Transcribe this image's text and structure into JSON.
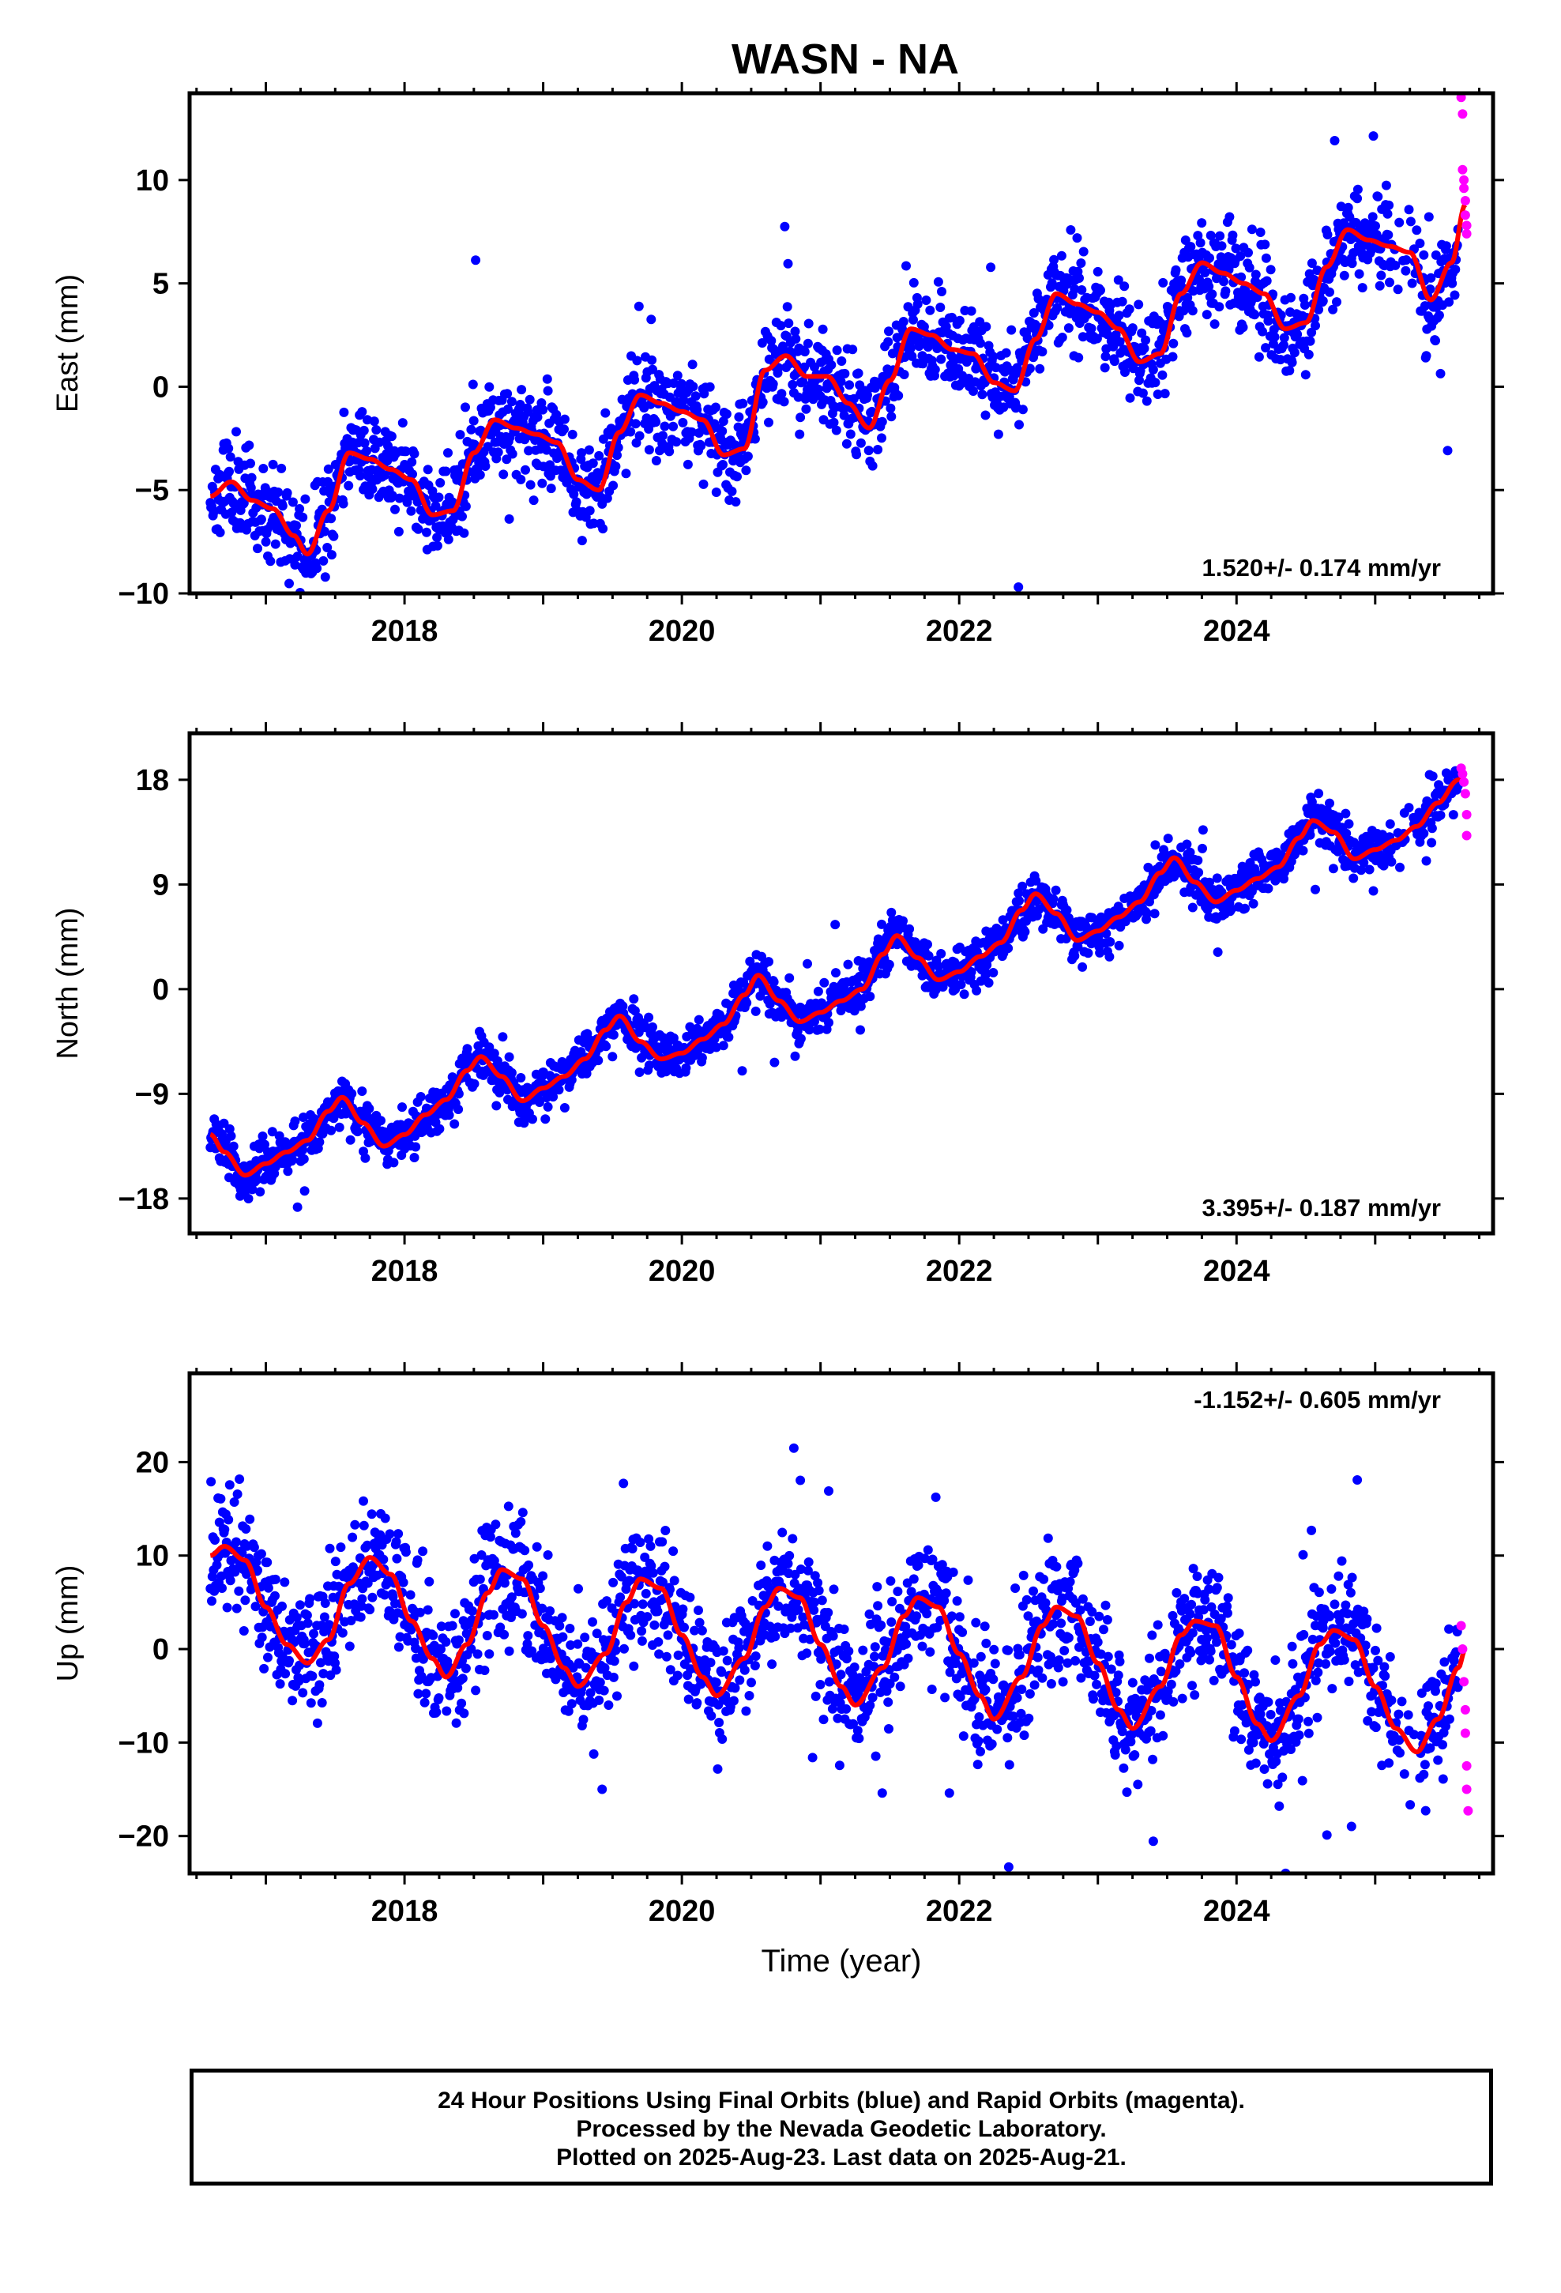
{
  "title": "WASN - NA",
  "footer": {
    "line1": "24 Hour Positions Using Final Orbits (blue) and Rapid Orbits (magenta).",
    "line2": "Processed by the Nevada Geodetic Laboratory.",
    "line3": "Plotted on 2025-Aug-23. Last data on 2025-Aug-21."
  },
  "colors": {
    "final_orbits": "#0000ff",
    "rapid_orbits": "#ff00ff",
    "model": "#ff0000"
  },
  "chart_data": [
    {
      "type": "scatter",
      "ylabel": "East (mm)",
      "xlabel": "",
      "xlim": [
        2016.45,
        2025.85
      ],
      "ylim": [
        -10,
        14.2
      ],
      "yticks": [
        -10,
        -5,
        0,
        5,
        10
      ],
      "xticks": [
        2018,
        2020,
        2022,
        2024
      ],
      "rate_label": "1.520+/- 0.174 mm/yr",
      "series": [
        {
          "kind": "model",
          "x": [
            2016.6,
            2016.75,
            2016.9,
            2017.05,
            2017.2,
            2017.3,
            2017.45,
            2017.6,
            2017.75,
            2017.9,
            2018.05,
            2018.2,
            2018.35,
            2018.5,
            2018.65,
            2018.8,
            2018.95,
            2019.1,
            2019.25,
            2019.4,
            2019.55,
            2019.7,
            2019.85,
            2020.0,
            2020.15,
            2020.3,
            2020.45,
            2020.6,
            2020.75,
            2020.9,
            2021.05,
            2021.2,
            2021.35,
            2021.5,
            2021.65,
            2021.8,
            2021.95,
            2022.1,
            2022.25,
            2022.4,
            2022.55,
            2022.7,
            2022.85,
            2023.0,
            2023.15,
            2023.3,
            2023.45,
            2023.6,
            2023.75,
            2023.9,
            2024.05,
            2024.2,
            2024.35,
            2024.5,
            2024.65,
            2024.8,
            2024.95,
            2025.1,
            2025.25,
            2025.4,
            2025.55,
            2025.65
          ],
          "y": [
            -5.3,
            -4.6,
            -5.5,
            -5.9,
            -7.2,
            -8.1,
            -6.0,
            -3.2,
            -3.5,
            -4.0,
            -4.5,
            -6.2,
            -6.0,
            -3.2,
            -1.6,
            -2.0,
            -2.3,
            -2.7,
            -4.5,
            -5.0,
            -2.2,
            -0.4,
            -0.8,
            -1.2,
            -1.6,
            -3.3,
            -3.0,
            0.8,
            1.5,
            0.5,
            0.5,
            -0.8,
            -2.0,
            0.3,
            2.8,
            2.5,
            1.8,
            1.6,
            0.2,
            -0.2,
            2.3,
            4.5,
            4.0,
            3.6,
            2.8,
            1.2,
            1.6,
            4.5,
            6.0,
            5.5,
            5.0,
            4.5,
            2.8,
            3.1,
            5.8,
            7.6,
            7.1,
            6.8,
            6.5,
            4.2,
            6.0,
            8.8
          ]
        },
        {
          "kind": "rapid",
          "x": [
            2025.62,
            2025.63,
            2025.63,
            2025.64,
            2025.64,
            2025.65,
            2025.65,
            2025.66,
            2025.66
          ],
          "y": [
            14.0,
            13.2,
            10.5,
            10.0,
            9.6,
            9.0,
            8.3,
            7.8,
            7.4
          ]
        }
      ],
      "scatter": {
        "seed": 11,
        "spread": 1.1,
        "outlier_rate": 0.02,
        "x_start": 2016.6,
        "x_end": 2025.6
      }
    },
    {
      "type": "scatter",
      "ylabel": "North (mm)",
      "xlabel": "",
      "xlim": [
        2016.45,
        2025.85
      ],
      "ylim": [
        -21,
        22
      ],
      "yticks": [
        -18,
        -9,
        0,
        9,
        18
      ],
      "xticks": [
        2018,
        2020,
        2022,
        2024
      ],
      "rate_label": "3.395+/- 0.187 mm/yr",
      "series": [
        {
          "kind": "model",
          "x": [
            2016.6,
            2016.7,
            2016.85,
            2017.0,
            2017.15,
            2017.3,
            2017.45,
            2017.55,
            2017.7,
            2017.85,
            2018.0,
            2018.15,
            2018.3,
            2018.45,
            2018.55,
            2018.7,
            2018.85,
            2019.0,
            2019.15,
            2019.3,
            2019.45,
            2019.55,
            2019.7,
            2019.85,
            2020.0,
            2020.15,
            2020.3,
            2020.45,
            2020.55,
            2020.7,
            2020.85,
            2021.0,
            2021.15,
            2021.3,
            2021.45,
            2021.55,
            2021.7,
            2021.85,
            2022.0,
            2022.15,
            2022.3,
            2022.45,
            2022.55,
            2022.7,
            2022.85,
            2023.0,
            2023.15,
            2023.3,
            2023.45,
            2023.55,
            2023.7,
            2023.85,
            2024.0,
            2024.15,
            2024.3,
            2024.45,
            2024.55,
            2024.7,
            2024.85,
            2025.0,
            2025.15,
            2025.3,
            2025.45,
            2025.6,
            2025.65
          ],
          "y": [
            -12.5,
            -14.0,
            -16.0,
            -15.0,
            -14.0,
            -13.0,
            -10.5,
            -9.3,
            -11.5,
            -13.5,
            -12.5,
            -10.8,
            -9.5,
            -7.0,
            -5.8,
            -7.5,
            -9.6,
            -8.5,
            -7.5,
            -6.0,
            -3.5,
            -2.3,
            -4.5,
            -6.0,
            -5.5,
            -4.3,
            -3.0,
            -0.5,
            1.2,
            -1.0,
            -2.8,
            -2.0,
            -1.0,
            0.0,
            3.0,
            4.6,
            2.7,
            0.8,
            1.5,
            2.8,
            4.0,
            6.8,
            8.2,
            6.5,
            4.2,
            5.0,
            6.2,
            7.5,
            10.0,
            11.3,
            9.2,
            7.5,
            8.5,
            9.5,
            10.5,
            13.0,
            14.5,
            13.5,
            11.2,
            12.0,
            12.8,
            14.0,
            16.0,
            18.0,
            18.4
          ]
        },
        {
          "kind": "rapid",
          "x": [
            2025.62,
            2025.63,
            2025.64,
            2025.65,
            2025.66,
            2025.66
          ],
          "y": [
            19.0,
            18.5,
            17.8,
            16.8,
            15.0,
            13.2
          ]
        }
      ],
      "scatter": {
        "seed": 23,
        "spread": 1.0,
        "outlier_rate": 0.015,
        "x_start": 2016.6,
        "x_end": 2025.6
      }
    },
    {
      "type": "scatter",
      "ylabel": "Up (mm)",
      "xlabel": "Time (year)",
      "xlim": [
        2016.45,
        2025.85
      ],
      "ylim": [
        -24,
        29.5
      ],
      "yticks": [
        -20,
        -10,
        0,
        10,
        20
      ],
      "xticks": [
        2018,
        2020,
        2022,
        2024
      ],
      "rate_label": "-1.152+/- 0.605 mm/yr",
      "series": [
        {
          "kind": "model",
          "x": [
            2016.6,
            2016.7,
            2016.85,
            2017.0,
            2017.15,
            2017.3,
            2017.45,
            2017.6,
            2017.75,
            2017.9,
            2018.05,
            2018.2,
            2018.3,
            2018.45,
            2018.6,
            2018.7,
            2018.85,
            2019.0,
            2019.15,
            2019.25,
            2019.45,
            2019.6,
            2019.7,
            2019.85,
            2020.0,
            2020.15,
            2020.25,
            2020.45,
            2020.6,
            2020.7,
            2020.85,
            2021.0,
            2021.15,
            2021.25,
            2021.45,
            2021.6,
            2021.7,
            2021.85,
            2022.0,
            2022.15,
            2022.25,
            2022.45,
            2022.6,
            2022.7,
            2022.85,
            2023.0,
            2023.15,
            2023.25,
            2023.45,
            2023.6,
            2023.7,
            2023.85,
            2024.0,
            2024.15,
            2024.25,
            2024.45,
            2024.6,
            2024.7,
            2024.85,
            2025.0,
            2025.15,
            2025.3,
            2025.45,
            2025.6,
            2025.65
          ],
          "y": [
            10.0,
            11.0,
            9.5,
            4.5,
            0.5,
            -1.5,
            1.0,
            7.0,
            9.8,
            8.0,
            3.0,
            -1.0,
            -3.0,
            0.5,
            6.0,
            8.5,
            7.5,
            2.5,
            -2.0,
            -4.0,
            -0.5,
            5.0,
            7.5,
            6.5,
            1.5,
            -3.0,
            -5.0,
            -1.0,
            4.5,
            6.5,
            5.5,
            0.5,
            -4.0,
            -6.0,
            -2.0,
            3.5,
            5.5,
            4.5,
            -0.5,
            -5.0,
            -7.5,
            -3.0,
            2.5,
            4.5,
            3.5,
            -1.5,
            -6.5,
            -8.5,
            -4.0,
            1.5,
            3.0,
            2.5,
            -3.0,
            -8.0,
            -9.8,
            -5.0,
            0.5,
            2.0,
            1.0,
            -4.0,
            -8.5,
            -11.0,
            -7.5,
            -2.0,
            0.0
          ]
        },
        {
          "kind": "rapid",
          "x": [
            2025.62,
            2025.63,
            2025.64,
            2025.65,
            2025.65,
            2025.66,
            2025.66,
            2025.67
          ],
          "y": [
            2.5,
            0.0,
            -3.5,
            -6.5,
            -9.0,
            -12.5,
            -15.0,
            -17.3
          ]
        }
      ],
      "scatter": {
        "seed": 37,
        "spread": 3.2,
        "outlier_rate": 0.03,
        "x_start": 2016.6,
        "x_end": 2025.6
      }
    }
  ]
}
